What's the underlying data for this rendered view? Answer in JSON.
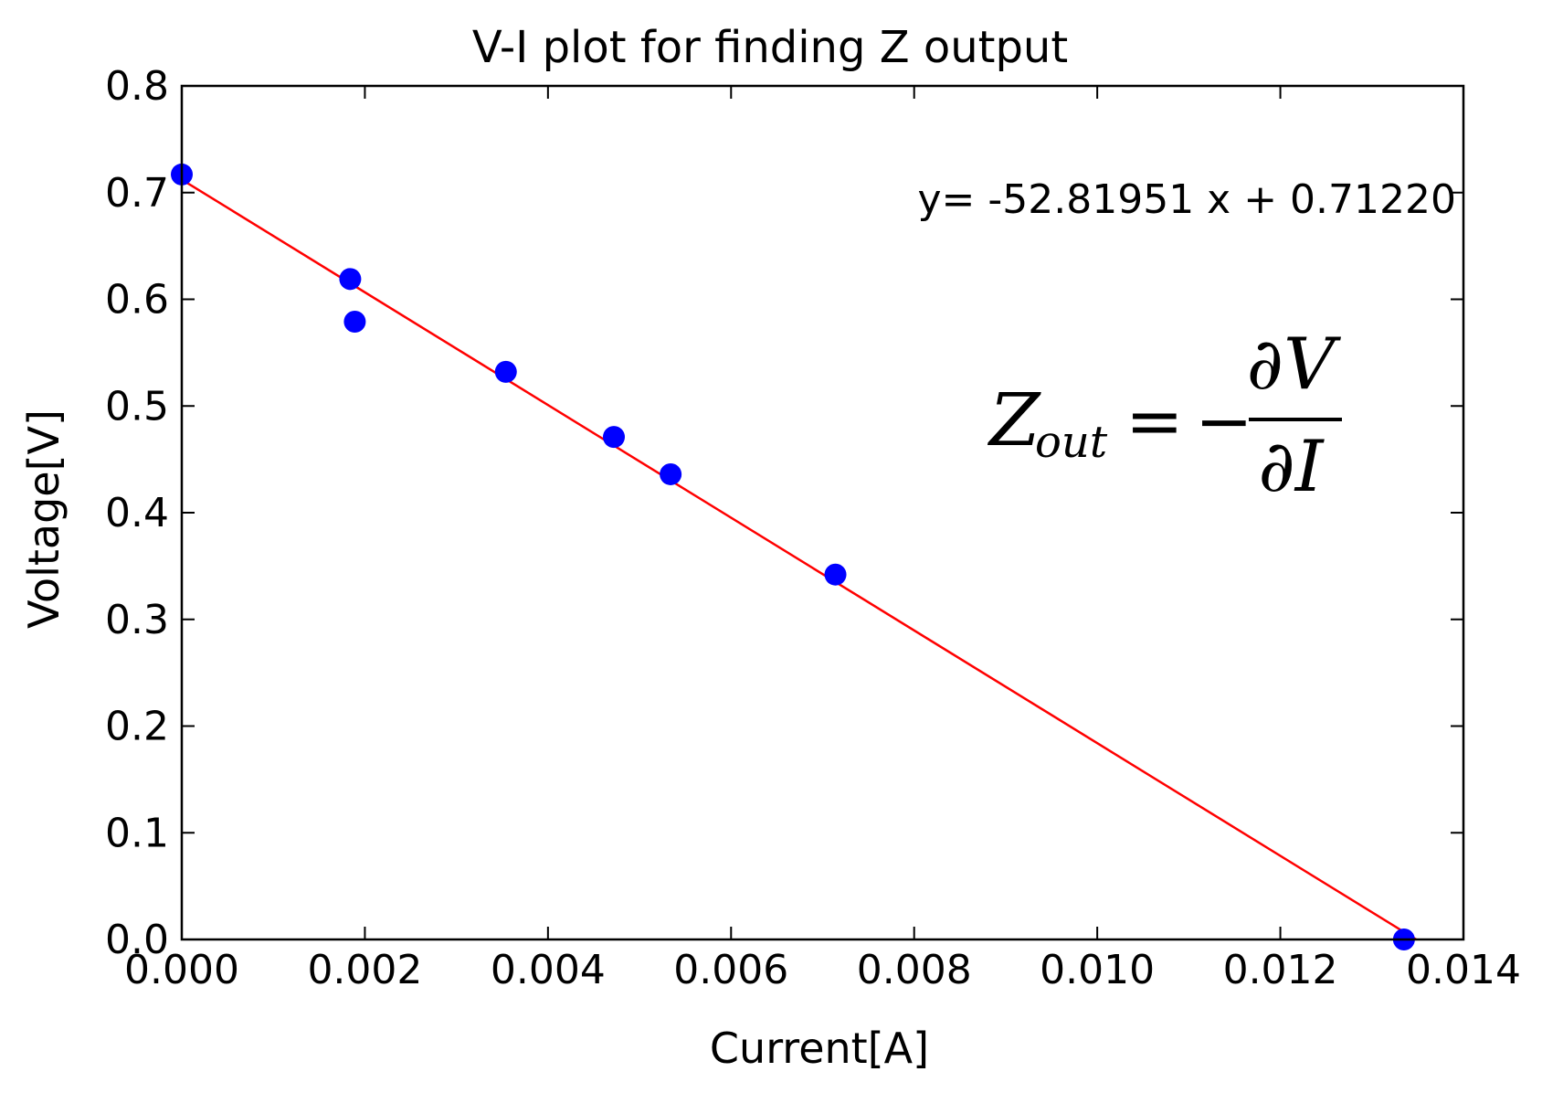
{
  "chart_data": {
    "type": "scatter",
    "title": "V-I plot for finding Z output",
    "xlabel": "Current[A]",
    "ylabel": "Voltage[V]",
    "xlim": [
      0.0,
      0.014
    ],
    "ylim": [
      0.0,
      0.8
    ],
    "xticks": [
      "0.000",
      "0.002",
      "0.004",
      "0.006",
      "0.008",
      "0.010",
      "0.012",
      "0.014"
    ],
    "yticks": [
      "0.0",
      "0.1",
      "0.2",
      "0.3",
      "0.4",
      "0.5",
      "0.6",
      "0.7",
      "0.8"
    ],
    "grid": false,
    "series": [
      {
        "kind": "points",
        "color": "#0000ff",
        "x": [
          0.0,
          0.00184,
          0.00189,
          0.00354,
          0.00472,
          0.00534,
          0.00714,
          0.01335
        ],
        "y": [
          0.717,
          0.619,
          0.579,
          0.532,
          0.471,
          0.436,
          0.342,
          0.0
        ]
      },
      {
        "kind": "fit-line",
        "color": "#ff0000",
        "slope": -52.81951,
        "intercept": 0.7122
      }
    ],
    "annotations": {
      "fit_equation": "y= -52.81951 x + 0.71220",
      "formula": {
        "lhs": "Z",
        "lhs_sub": "out",
        "equals": "=",
        "minus": "−",
        "numerator": "∂V",
        "denominator": "∂I"
      }
    }
  }
}
